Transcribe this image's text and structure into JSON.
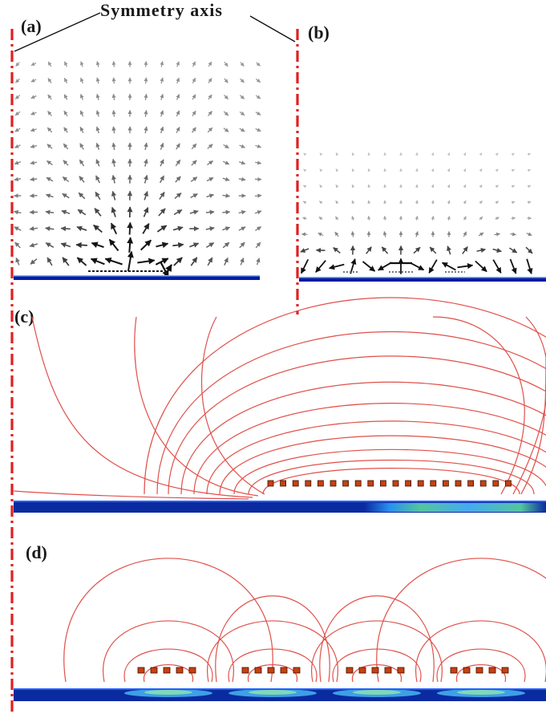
{
  "symmetry_axis_label": "Symmetry axis",
  "panels": [
    {
      "id": "a",
      "label": "(a)"
    },
    {
      "id": "b",
      "label": "(b)"
    },
    {
      "id": "c",
      "label": "(c)"
    },
    {
      "id": "d",
      "label": "(d)"
    }
  ],
  "colors": {
    "symmetry_axis": "#e02020",
    "field_lines": "#e0504a",
    "arrows": "#111111",
    "conductor_plane": "#1030a0",
    "coil_elements": "#c84010"
  }
}
